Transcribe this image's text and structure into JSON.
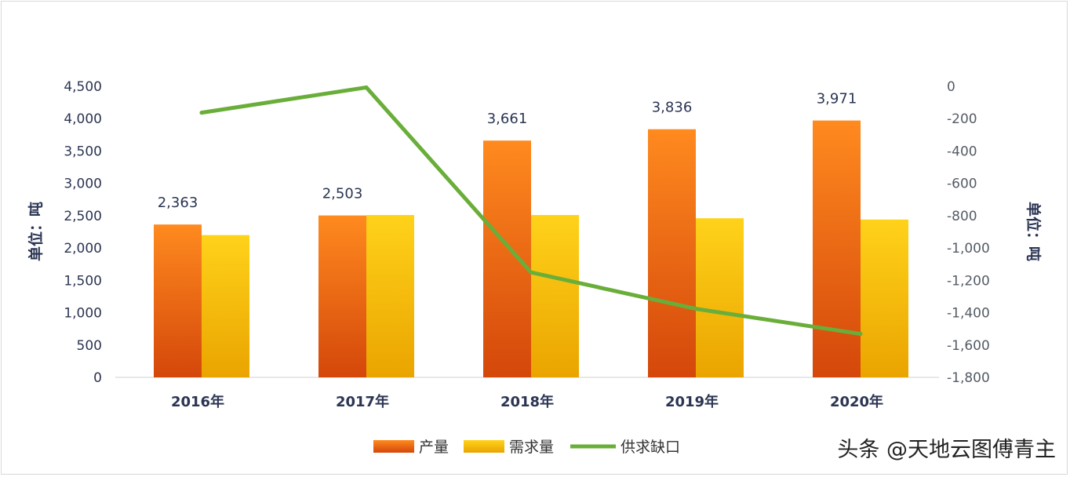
{
  "chart_data": {
    "type": "bar",
    "categories": [
      "2016年",
      "2017年",
      "2018年",
      "2019年",
      "2020年"
    ],
    "series": [
      {
        "name": "产量",
        "type": "bar",
        "axis": "left",
        "values": [
          2363,
          2503,
          3661,
          3836,
          3971
        ],
        "data_labels": [
          "2,363",
          "2,503",
          "3,661",
          "3,836",
          "3,971"
        ],
        "color": "#f07010"
      },
      {
        "name": "需求量",
        "type": "bar",
        "axis": "left",
        "values": [
          2200,
          2510,
          2510,
          2460,
          2440
        ],
        "color": "#f5be00"
      },
      {
        "name": "供求缺口",
        "type": "line",
        "axis": "right",
        "values": [
          -163,
          -7,
          -1151,
          -1376,
          -1531
        ],
        "color": "#6aae3a"
      }
    ],
    "y_left": {
      "label": "单位：吨",
      "ylim": [
        0,
        4500
      ],
      "ticks": [
        "0",
        "500",
        "1,000",
        "1,500",
        "2,000",
        "2,500",
        "3,000",
        "3,500",
        "4,000",
        "4,500"
      ]
    },
    "y_right": {
      "label": "单位：吨",
      "ylim": [
        -1800,
        0
      ],
      "ticks": [
        "-1,800",
        "-1,600",
        "-1,400",
        "-1,200",
        "-1,000",
        "-800",
        "-600",
        "-400",
        "-200",
        "0"
      ]
    },
    "legend_position": "bottom-center",
    "grid": false
  },
  "watermark": "头条 @天地云图傅青主"
}
